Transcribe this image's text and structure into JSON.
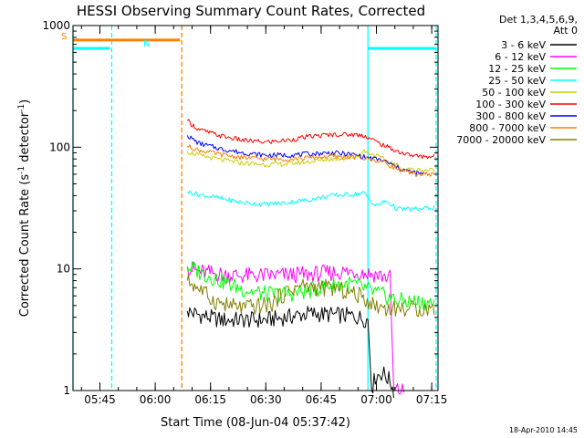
{
  "chart_data": {
    "type": "line",
    "title": "HESSI Observing Summary Count Rates, Corrected",
    "xlabel": "Start Time (08-Jun-04 05:37:42)",
    "ylabel_main": "Corrected Count Rate (s",
    "ylabel_sup1": "-1",
    "ylabel_mid": " detector",
    "ylabel_sup2": "-1",
    "ylabel_end": ")",
    "x_unit": "minutes after 05:37:42",
    "xlim": [
      0,
      99
    ],
    "yscale": "log",
    "ylim": [
      1,
      1000
    ],
    "x_ticks": [
      {
        "label": "05:45",
        "value": 7.3
      },
      {
        "label": "06:00",
        "value": 22.3
      },
      {
        "label": "06:15",
        "value": 37.3
      },
      {
        "label": "06:30",
        "value": 52.3
      },
      {
        "label": "06:45",
        "value": 67.3
      },
      {
        "label": "07:00",
        "value": 82.3
      },
      {
        "label": "07:15",
        "value": 97.3
      }
    ],
    "y_ticks": [
      {
        "label": "1",
        "value": 1
      },
      {
        "label": "10",
        "value": 10
      },
      {
        "label": "100",
        "value": 100
      },
      {
        "label": "1000",
        "value": 1000
      }
    ],
    "legend": {
      "header1": "Det 1,3,4,5,6,9,",
      "header2": "Att 0",
      "placement": "right"
    },
    "series": [
      {
        "name": "3 - 6 keV",
        "color": "#000000",
        "x": [
          31,
          34,
          40,
          46,
          52,
          58,
          64,
          70,
          76,
          80,
          81,
          82,
          84,
          86,
          87
        ],
        "y": [
          4.5,
          4.2,
          3.8,
          3.8,
          3.8,
          4.0,
          4.3,
          4.2,
          4.1,
          3.8,
          1.0,
          1.3,
          1.4,
          1.2,
          1.0
        ]
      },
      {
        "name": "6 - 12 keV",
        "color": "#ff00ff",
        "x": [
          31,
          34,
          40,
          46,
          52,
          58,
          64,
          70,
          76,
          82,
          86,
          87,
          88,
          90
        ],
        "y": [
          10.5,
          9.5,
          9.0,
          8.8,
          8.8,
          8.9,
          9.0,
          9.3,
          9.5,
          9.0,
          8.5,
          1.0,
          1.0,
          1.0
        ]
      },
      {
        "name": "12 - 25 keV",
        "color": "#00ff00",
        "x": [
          31,
          34,
          40,
          46,
          52,
          58,
          64,
          70,
          76,
          82,
          88,
          94,
          98
        ],
        "y": [
          10.5,
          9.5,
          8.0,
          6.8,
          6.2,
          6.2,
          6.6,
          7.4,
          7.5,
          6.4,
          5.5,
          5.3,
          5.3
        ]
      },
      {
        "name": "25 - 50 keV",
        "color": "#00ffff",
        "x": [
          31,
          34,
          40,
          46,
          52,
          58,
          64,
          70,
          76,
          79,
          82,
          85,
          88,
          94,
          98
        ],
        "y": [
          43,
          41,
          38,
          35,
          34,
          35,
          37,
          40,
          41,
          42,
          33,
          36,
          31,
          31,
          32
        ]
      },
      {
        "name": "50 - 100 keV",
        "color": "#cccc00",
        "x": [
          31,
          34,
          40,
          46,
          52,
          58,
          64,
          70,
          76,
          79,
          82,
          86,
          90,
          94,
          98
        ],
        "y": [
          92,
          86,
          79,
          74,
          72,
          73,
          76,
          80,
          82,
          93,
          86,
          75,
          66,
          65,
          65
        ]
      },
      {
        "name": "100 - 300 keV",
        "color": "#ff0000",
        "x": [
          31,
          34,
          40,
          46,
          52,
          58,
          64,
          70,
          76,
          79,
          82,
          86,
          90,
          94,
          98
        ],
        "y": [
          165,
          140,
          124,
          114,
          110,
          114,
          122,
          127,
          127,
          125,
          112,
          98,
          88,
          84,
          84
        ]
      },
      {
        "name": "300 - 800 keV",
        "color": "#0000ff",
        "x": [
          31,
          34,
          40,
          46,
          52,
          58,
          64,
          70,
          76,
          80,
          84,
          88,
          92,
          95
        ],
        "y": [
          125,
          108,
          97,
          90,
          86,
          86,
          88,
          90,
          87,
          82,
          78,
          68,
          62,
          60
        ]
      },
      {
        "name": "800 - 7000 keV",
        "color": "#ff7f00",
        "x": [
          -1,
          29,
          29.5,
          31,
          34,
          40,
          46,
          52,
          58,
          64,
          70,
          76,
          80,
          84,
          88,
          92,
          98
        ],
        "y": [
          760,
          760,
          null,
          102,
          95,
          87,
          82,
          80,
          80,
          82,
          84,
          83,
          80,
          76,
          66,
          60,
          60
        ]
      },
      {
        "name": "7000 - 20000 keV",
        "color": "#808000",
        "x": [
          31,
          34,
          38,
          42,
          46,
          50,
          54,
          58,
          62,
          66,
          70,
          74,
          78,
          82,
          86,
          90,
          94,
          98
        ],
        "y": [
          8.0,
          7.0,
          5.5,
          5.0,
          4.8,
          4.9,
          5.2,
          6.5,
          7.3,
          7.0,
          7.0,
          6.5,
          6.0,
          5.0,
          4.7,
          4.7,
          4.7,
          4.7
        ]
      }
    ],
    "overlays": [
      {
        "color": "#00ffff",
        "label": "N",
        "x": [
          -1,
          10
        ],
        "y": 650
      }
    ],
    "overlay_markers": [
      {
        "text": "S",
        "color": "#ff7f00"
      },
      {
        "text": "N",
        "color": "#00ffff"
      }
    ],
    "vlines": [
      {
        "x": 10.5,
        "style": "dashed",
        "color": "#00ffff"
      },
      {
        "x": 29.5,
        "style": "dashed",
        "color": "#ff7f00"
      },
      {
        "x": 98.5,
        "style": "dashed",
        "color": "#00ffff"
      },
      {
        "x": -1.2,
        "style": "solid",
        "color": "#00ffff"
      },
      {
        "x": 80,
        "style": "solid",
        "color": "#00ffff"
      }
    ],
    "footer": "18-Apr-2010 14:45"
  }
}
